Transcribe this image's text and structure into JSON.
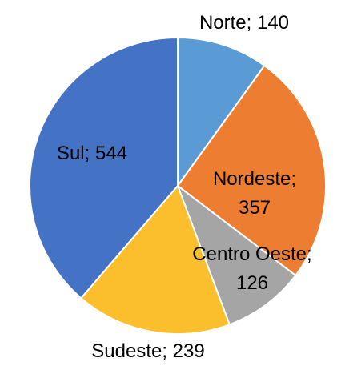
{
  "chart_data": {
    "type": "pie",
    "values": [
      140,
      357,
      126,
      239,
      544
    ],
    "value_labels": [
      "Norte; 140",
      "Nordeste;\n357",
      "Centro Oeste;\n126",
      "Sudeste; 239",
      "Sul; 544"
    ],
    "colors": [
      "#5b9bd5",
      "#ed7d31",
      "#a5a5a5",
      "#fbbf2d",
      "#4472c4"
    ]
  }
}
